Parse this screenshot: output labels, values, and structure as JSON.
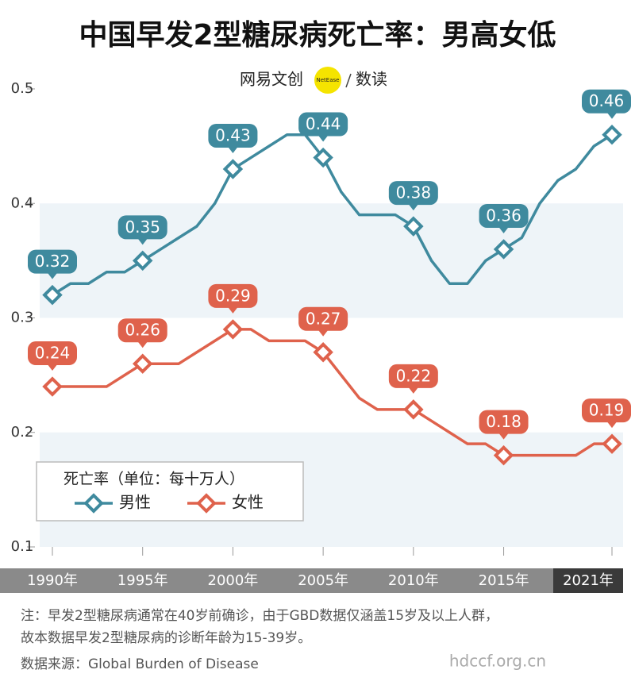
{
  "title": "中国早发2型糖尿病死亡率：男高女低",
  "logo": {
    "brand": "网易文创",
    "badge": "NetEase",
    "section": "数读"
  },
  "chart_data": {
    "type": "line",
    "x": [
      1990,
      1991,
      1992,
      1993,
      1994,
      1995,
      1996,
      1997,
      1998,
      1999,
      2000,
      2001,
      2002,
      2003,
      2004,
      2005,
      2006,
      2007,
      2008,
      2009,
      2010,
      2011,
      2012,
      2013,
      2014,
      2015,
      2016,
      2017,
      2018,
      2019,
      2020,
      2021
    ],
    "series": [
      {
        "name": "男性",
        "color": "#3f8a9e",
        "values": [
          0.32,
          0.33,
          0.33,
          0.34,
          0.34,
          0.35,
          0.36,
          0.37,
          0.38,
          0.4,
          0.43,
          0.44,
          0.45,
          0.46,
          0.46,
          0.44,
          0.41,
          0.39,
          0.39,
          0.39,
          0.38,
          0.35,
          0.33,
          0.33,
          0.35,
          0.36,
          0.37,
          0.4,
          0.42,
          0.43,
          0.45,
          0.46
        ]
      },
      {
        "name": "女性",
        "color": "#df624c",
        "values": [
          0.24,
          0.24,
          0.24,
          0.24,
          0.25,
          0.26,
          0.26,
          0.26,
          0.27,
          0.28,
          0.29,
          0.29,
          0.28,
          0.28,
          0.28,
          0.27,
          0.25,
          0.23,
          0.22,
          0.22,
          0.22,
          0.21,
          0.2,
          0.19,
          0.19,
          0.18,
          0.18,
          0.18,
          0.18,
          0.18,
          0.19,
          0.19
        ]
      }
    ],
    "xlim": [
      1990,
      2021
    ],
    "xticks": [
      {
        "value": 1990,
        "label": "1990年"
      },
      {
        "value": 1995,
        "label": "1995年"
      },
      {
        "value": 2000,
        "label": "2000年"
      },
      {
        "value": 2005,
        "label": "2005年"
      },
      {
        "value": 2010,
        "label": "2010年"
      },
      {
        "value": 2015,
        "label": "2015年"
      },
      {
        "value": 2021,
        "label": "2021年"
      }
    ],
    "ylim": [
      0.1,
      0.5
    ],
    "yticks": [
      0.1,
      0.2,
      0.3,
      0.4,
      0.5
    ],
    "legend_title": "死亡率（单位：每十万人）",
    "legend": "lower left"
  },
  "notes": [
    "注：早发2型糖尿病通常在40岁前确诊，由于GBD数据仅涵盖15岁及以上人群，",
    "故本数据早发2型糖尿病的诊断年龄为15-39岁。"
  ],
  "source": "数据来源：Global Burden of Disease",
  "watermark": "hdccf.org.cn"
}
